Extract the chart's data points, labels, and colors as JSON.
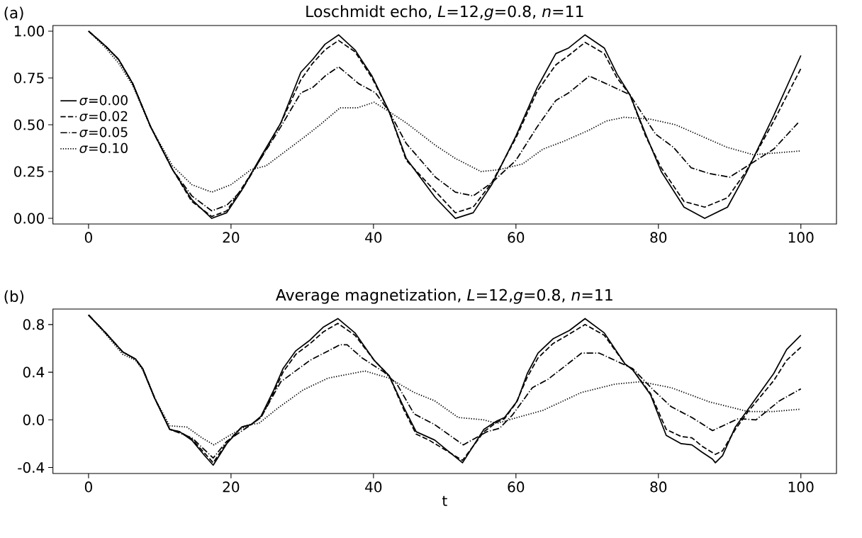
{
  "chart_data": [
    {
      "type": "line",
      "title": "Loschmidt echo, *L*=12,*g*=0.8, *n*=11",
      "annotations": [
        "(a)"
      ],
      "xlim": [
        -5,
        105
      ],
      "ylim": [
        -0.03,
        1.03
      ],
      "xticks": [
        0,
        20,
        40,
        60,
        80,
        100
      ],
      "yticks": [
        {
          "value": 0,
          "label": "0.00"
        },
        {
          "value": 0.25,
          "label": "0.25"
        },
        {
          "value": 0.5,
          "label": "0.50"
        },
        {
          "value": 0.75,
          "label": "0.75"
        },
        {
          "value": 1,
          "label": "1.00"
        }
      ],
      "legend": "left",
      "grid": false,
      "marker": "none",
      "series": [
        {
          "name": "*σ*=0.00",
          "color": "#000000",
          "line_style": "solid",
          "x": [
            0,
            2.4,
            4.2,
            6.2,
            8.7,
            11.8,
            14.5,
            17.3,
            19.4,
            21.5,
            24.2,
            27,
            29.8,
            31.5,
            33.2,
            35.1,
            37.4,
            39.8,
            42.2,
            44.6,
            48.7,
            51.5,
            54,
            56.6,
            60,
            63,
            65.6,
            67.4,
            69.7,
            72.4,
            74.2,
            76,
            78.2,
            80.4,
            83.6,
            86.5,
            89.7,
            92.3,
            96.2,
            100
          ],
          "values": [
            1.0,
            0.92,
            0.85,
            0.72,
            0.49,
            0.26,
            0.1,
            0.0,
            0.03,
            0.15,
            0.33,
            0.51,
            0.78,
            0.85,
            0.93,
            0.98,
            0.9,
            0.76,
            0.57,
            0.32,
            0.11,
            0.0,
            0.03,
            0.18,
            0.44,
            0.7,
            0.88,
            0.91,
            0.98,
            0.91,
            0.77,
            0.66,
            0.45,
            0.25,
            0.06,
            0.0,
            0.06,
            0.24,
            0.55,
            0.87
          ]
        },
        {
          "name": "*σ*=0.02",
          "color": "#000000",
          "line_style": "dashed",
          "x": [
            0,
            2.4,
            4.2,
            6.2,
            8.7,
            11.8,
            14.5,
            17.3,
            19.4,
            21.5,
            24.2,
            27,
            29.8,
            31.5,
            33.2,
            35.1,
            37.4,
            39.8,
            42.2,
            44.6,
            51.5,
            54,
            56.6,
            60,
            63,
            65.6,
            67.4,
            69.7,
            72.4,
            74.2,
            76,
            78.2,
            80.4,
            83.6,
            86.5,
            89.7,
            92.3,
            96.2,
            100
          ],
          "values": [
            1.0,
            0.92,
            0.85,
            0.72,
            0.49,
            0.26,
            0.09,
            0.01,
            0.04,
            0.16,
            0.32,
            0.51,
            0.74,
            0.83,
            0.9,
            0.95,
            0.89,
            0.75,
            0.57,
            0.31,
            0.03,
            0.06,
            0.19,
            0.43,
            0.68,
            0.82,
            0.87,
            0.94,
            0.88,
            0.75,
            0.66,
            0.44,
            0.27,
            0.09,
            0.06,
            0.11,
            0.25,
            0.52,
            0.8
          ]
        },
        {
          "name": "*σ*=0.05",
          "color": "#000000",
          "line_style": "dashdot",
          "x": [
            0,
            2.4,
            4.2,
            6.2,
            8.7,
            11.8,
            14.5,
            17.3,
            19.4,
            21.5,
            24.2,
            27,
            29.8,
            31.5,
            33.2,
            35.1,
            37.9,
            40.3,
            42.2,
            44.6,
            48.7,
            51.5,
            54,
            56.6,
            60,
            63,
            65.6,
            67.4,
            70.3,
            73.2,
            76,
            79.6,
            82.1,
            84.6,
            87.1,
            90,
            92.5,
            96.2,
            99.6
          ],
          "values": [
            1.0,
            0.92,
            0.85,
            0.72,
            0.49,
            0.26,
            0.12,
            0.04,
            0.07,
            0.15,
            0.32,
            0.49,
            0.67,
            0.7,
            0.76,
            0.81,
            0.72,
            0.67,
            0.57,
            0.4,
            0.22,
            0.14,
            0.12,
            0.19,
            0.31,
            0.49,
            0.63,
            0.67,
            0.76,
            0.71,
            0.66,
            0.45,
            0.38,
            0.27,
            0.24,
            0.22,
            0.28,
            0.37,
            0.51
          ]
        },
        {
          "name": "*σ*=0.10",
          "color": "#000000",
          "line_style": "dotted",
          "x": [
            0,
            2.4,
            4.2,
            6.2,
            8.7,
            11.8,
            14.5,
            17.3,
            20,
            22.8,
            24.9,
            27.7,
            30.5,
            32.5,
            35.3,
            37.7,
            40.1,
            42.2,
            44.6,
            48.7,
            51.5,
            55.1,
            57.6,
            60.9,
            63.8,
            66.6,
            70.2,
            72.7,
            75.2,
            78.8,
            82.4,
            86,
            89.6,
            93.3,
            100
          ],
          "values": [
            1.0,
            0.91,
            0.83,
            0.71,
            0.49,
            0.28,
            0.18,
            0.14,
            0.18,
            0.26,
            0.28,
            0.36,
            0.44,
            0.5,
            0.59,
            0.59,
            0.62,
            0.57,
            0.51,
            0.39,
            0.32,
            0.25,
            0.26,
            0.29,
            0.37,
            0.41,
            0.47,
            0.52,
            0.54,
            0.53,
            0.5,
            0.44,
            0.38,
            0.34,
            0.36
          ]
        }
      ]
    },
    {
      "type": "line",
      "title": "Average magnetization, *L*=12,*g*=0.8, *n*=11",
      "annotations": [
        "(b)"
      ],
      "xlabel": "t",
      "xlim": [
        -5,
        105
      ],
      "ylim": [
        -0.45,
        0.93
      ],
      "xticks": [
        0,
        20,
        40,
        60,
        80,
        100
      ],
      "yticks": [
        {
          "value": -0.4,
          "label": "-0.4"
        },
        {
          "value": 0,
          "label": "0.0"
        },
        {
          "value": 0.4,
          "label": "0.4"
        },
        {
          "value": 0.8,
          "label": "0.8"
        }
      ],
      "grid": false,
      "marker": "none",
      "series": [
        {
          "color": "#000000",
          "line_style": "solid",
          "x": [
            0,
            2.4,
            4.8,
            6.6,
            7.6,
            9.3,
            11.4,
            12.8,
            14.5,
            16.3,
            17.5,
            19.4,
            21.5,
            22.8,
            24.2,
            26,
            27.3,
            29.1,
            31.1,
            33,
            35,
            37.4,
            40.1,
            42.2,
            44.3,
            46,
            48.6,
            52.5,
            55.5,
            57.3,
            58.4,
            60.2,
            61.6,
            63.1,
            65.2,
            67.5,
            69.7,
            72.4,
            75.3,
            76.4,
            78.9,
            81.1,
            83.2,
            84.7,
            86.1,
            87.6,
            88,
            89,
            90.8,
            92.6,
            96.2,
            98,
            100
          ],
          "values": [
            0.88,
            0.73,
            0.57,
            0.51,
            0.43,
            0.18,
            -0.08,
            -0.1,
            -0.17,
            -0.3,
            -0.38,
            -0.2,
            -0.06,
            -0.04,
            0.03,
            0.25,
            0.43,
            0.58,
            0.67,
            0.78,
            0.85,
            0.73,
            0.5,
            0.37,
            0.1,
            -0.1,
            -0.17,
            -0.36,
            -0.08,
            -0.01,
            0.02,
            0.16,
            0.39,
            0.56,
            0.68,
            0.75,
            0.85,
            0.73,
            0.47,
            0.42,
            0.21,
            -0.13,
            -0.2,
            -0.21,
            -0.27,
            -0.33,
            -0.36,
            -0.3,
            -0.06,
            0.09,
            0.39,
            0.59,
            0.71
          ]
        },
        {
          "color": "#000000",
          "line_style": "dashed",
          "x": [
            0,
            2.4,
            4.8,
            6.6,
            7.6,
            9.3,
            11.4,
            12.8,
            14.5,
            16.3,
            17.5,
            19.4,
            21.5,
            22.8,
            24.2,
            26,
            27.3,
            29.1,
            31.1,
            33,
            35,
            37.4,
            40.1,
            42.2,
            44.3,
            46,
            47.8,
            52.5,
            55.5,
            57.3,
            58.4,
            60,
            61.6,
            63.1,
            65.2,
            67.5,
            69.7,
            72.4,
            75.3,
            76.4,
            78.9,
            81.1,
            83.2,
            84.7,
            86.1,
            88,
            89,
            90.8,
            92.6,
            96.2,
            98,
            100
          ],
          "values": [
            0.88,
            0.73,
            0.57,
            0.51,
            0.43,
            0.18,
            -0.08,
            -0.1,
            -0.16,
            -0.28,
            -0.36,
            -0.19,
            -0.06,
            -0.04,
            0.02,
            0.23,
            0.4,
            0.55,
            0.64,
            0.74,
            0.81,
            0.71,
            0.5,
            0.37,
            0.08,
            -0.12,
            -0.17,
            -0.34,
            -0.1,
            -0.02,
            0.01,
            0.14,
            0.36,
            0.52,
            0.64,
            0.72,
            0.8,
            0.71,
            0.47,
            0.42,
            0.22,
            -0.08,
            -0.14,
            -0.15,
            -0.22,
            -0.29,
            -0.26,
            -0.08,
            0.07,
            0.33,
            0.5,
            0.61
          ]
        },
        {
          "color": "#000000",
          "line_style": "dashdot",
          "x": [
            0,
            2.4,
            4.8,
            6.6,
            7.6,
            9.3,
            11.4,
            14.5,
            17.5,
            19.4,
            22.8,
            24.2,
            27,
            31.1,
            35.3,
            36.3,
            38.4,
            41.5,
            43.3,
            45.7,
            48.6,
            52.6,
            55.9,
            57.7,
            59.5,
            62.3,
            64.5,
            69.2,
            71.7,
            76.4,
            79.3,
            81.8,
            84.7,
            87.6,
            91.2,
            93.7,
            97,
            100
          ],
          "values": [
            0.88,
            0.73,
            0.57,
            0.51,
            0.43,
            0.18,
            -0.08,
            -0.15,
            -0.32,
            -0.18,
            -0.04,
            0.02,
            0.32,
            0.5,
            0.63,
            0.63,
            0.52,
            0.4,
            0.3,
            0.05,
            -0.04,
            -0.21,
            -0.1,
            -0.07,
            0.04,
            0.27,
            0.34,
            0.56,
            0.56,
            0.43,
            0.25,
            0.11,
            0.02,
            -0.09,
            0.01,
            0.0,
            0.16,
            0.26
          ]
        },
        {
          "color": "#000000",
          "line_style": "dotted",
          "x": [
            0,
            2.4,
            4.8,
            6.6,
            7.6,
            9.3,
            11.4,
            13.8,
            15.9,
            17.6,
            20.1,
            22.5,
            23.9,
            26.6,
            30.1,
            33.6,
            38.8,
            42.2,
            45.7,
            48.6,
            51.9,
            55.5,
            57.3,
            60.2,
            63.8,
            69.2,
            73.9,
            77.5,
            81.8,
            87.2,
            92.6,
            96.2,
            100
          ],
          "values": [
            0.88,
            0.72,
            0.55,
            0.5,
            0.42,
            0.18,
            -0.05,
            -0.06,
            -0.15,
            -0.21,
            -0.12,
            -0.04,
            -0.03,
            0.1,
            0.25,
            0.35,
            0.41,
            0.35,
            0.23,
            0.16,
            0.02,
            0.0,
            -0.03,
            0.02,
            0.08,
            0.23,
            0.3,
            0.32,
            0.27,
            0.15,
            0.07,
            0.07,
            0.09
          ]
        }
      ]
    }
  ]
}
